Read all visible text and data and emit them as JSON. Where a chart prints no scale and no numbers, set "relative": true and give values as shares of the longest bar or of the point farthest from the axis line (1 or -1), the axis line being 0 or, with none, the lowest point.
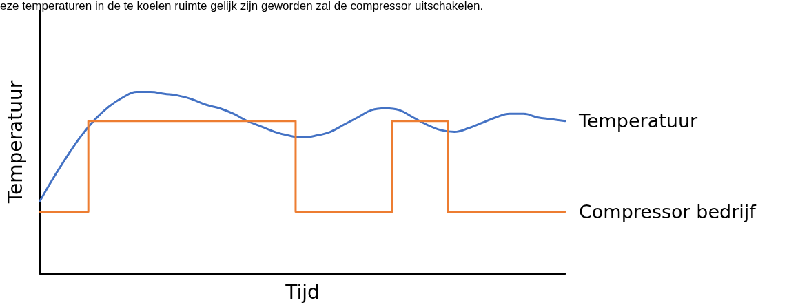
{
  "chart_data": {
    "type": "line",
    "relative": true,
    "xlabel": "Tijd",
    "ylabel": "Temperatuur",
    "legend": false,
    "marker": "none",
    "annotations": [
      "eze temperaturen in de te koelen ruimte gelijk zijn geworden zal de compressor uitschakelen."
    ],
    "categories": [
      null,
      null,
      null,
      null,
      null,
      null,
      null,
      null,
      null,
      null,
      null,
      null,
      null,
      null,
      null,
      null,
      null,
      null,
      null,
      null,
      null,
      null,
      null,
      null,
      null,
      null,
      null,
      null,
      null,
      null,
      null,
      null,
      null,
      null,
      null,
      null,
      null,
      null,
      null
    ],
    "series": [
      {
        "name": "Temperatuur",
        "color": "#4472c4",
        "values": [
          0.4,
          0.53,
          0.65,
          0.76,
          0.85,
          0.92,
          0.97,
          1.0,
          1,
          0.99,
          0.98,
          0.96,
          0.93,
          0.91,
          0.88,
          0.84,
          0.81,
          0.78,
          0.76,
          0.75,
          0.76,
          0.78,
          0.82,
          0.86,
          0.9,
          0.91,
          0.9,
          0.86,
          0.82,
          0.79,
          0.78,
          0.8,
          0.83,
          0.86,
          0.88,
          0.88,
          0.86,
          0.85,
          0.84
        ]
      },
      {
        "name": "Compressor bedrijf",
        "type": "step",
        "color": "#ed7d31",
        "values": [
          0.34,
          0.34,
          0.34,
          0.34,
          0.84,
          0.84,
          0.84,
          0.84,
          0.84,
          0.84,
          0.84,
          0.84,
          0.84,
          0.84,
          0.84,
          0.84,
          0.84,
          0.84,
          0.84,
          0.34,
          0.34,
          0.34,
          0.34,
          0.34,
          0.34,
          0.34,
          0.84,
          0.84,
          0.84,
          0.84,
          0.34,
          0.34,
          0.34,
          0.34,
          0.34,
          0.34,
          0.34,
          0.34,
          0.34
        ]
      }
    ]
  }
}
